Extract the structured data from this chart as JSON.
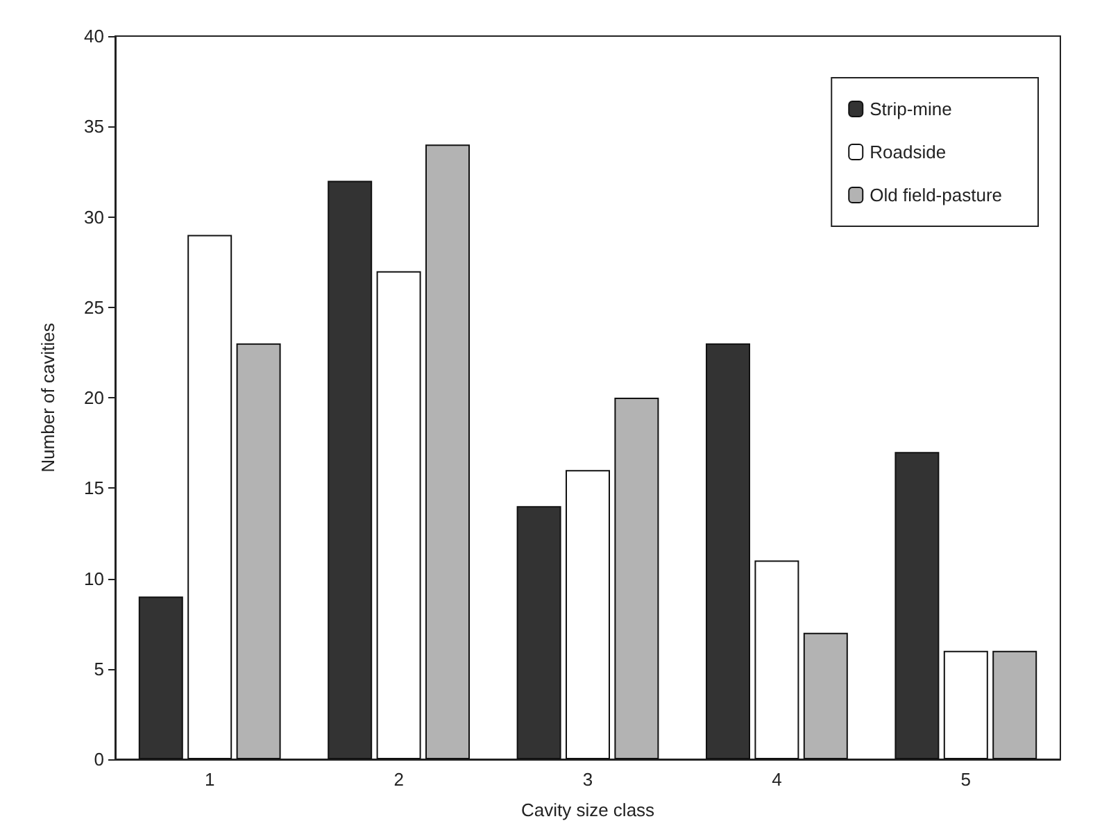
{
  "chart_data": {
    "type": "bar",
    "xlabel": "Cavity size class",
    "ylabel": "Number of cavities",
    "categories": [
      "1",
      "2",
      "3",
      "4",
      "5"
    ],
    "series": [
      {
        "name": "Strip-mine",
        "color": "#333333",
        "values": [
          9,
          32,
          14,
          23,
          17
        ]
      },
      {
        "name": "Roadside",
        "color": "#ffffff",
        "values": [
          29,
          27,
          16,
          11,
          6
        ]
      },
      {
        "name": "Old field-pasture",
        "color": "#b3b3b3",
        "values": [
          23,
          34,
          20,
          7,
          6
        ]
      }
    ],
    "ylim": [
      0,
      40
    ],
    "yticks": [
      0,
      5,
      10,
      15,
      20,
      25,
      30,
      35,
      40
    ],
    "grid": false,
    "legend": "top right"
  }
}
